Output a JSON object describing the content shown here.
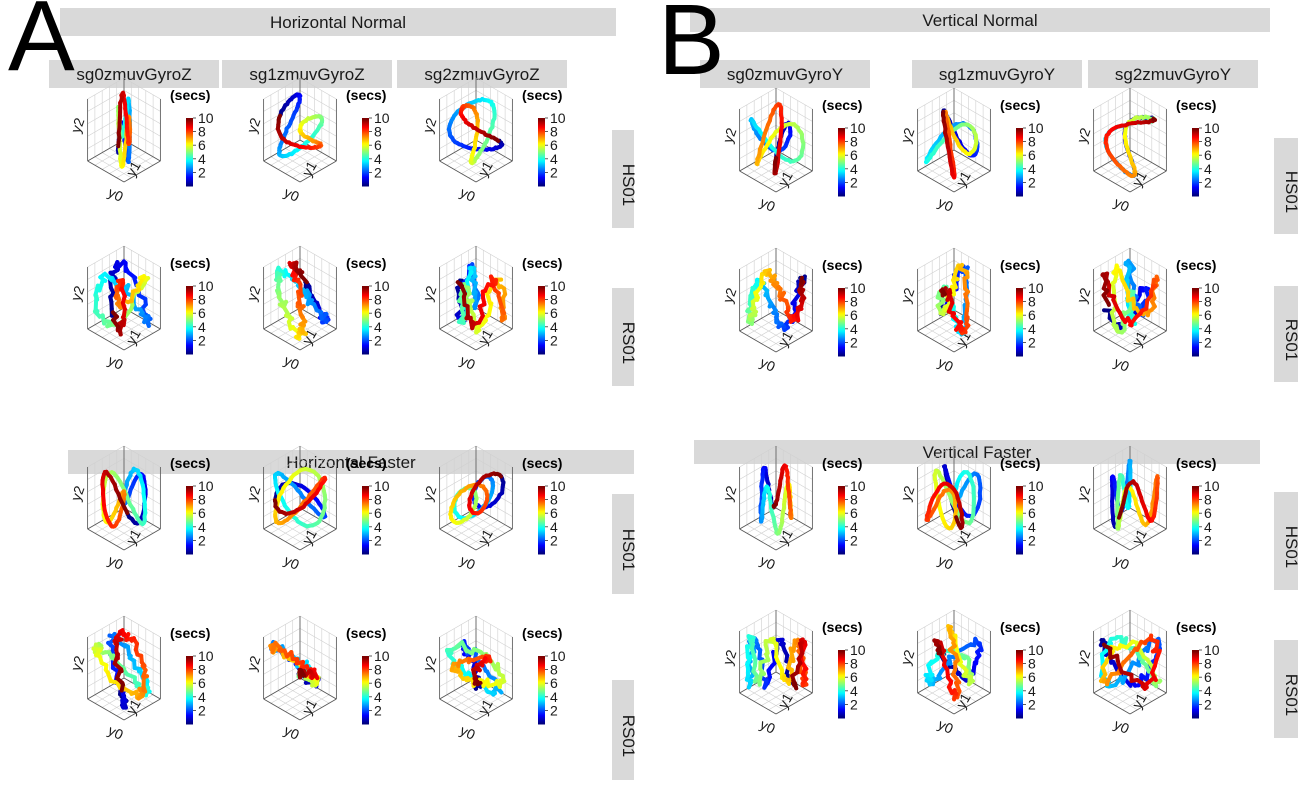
{
  "figure": {
    "panels": [
      {
        "letter": "A",
        "column_labels": [
          "sg0zmuvGyroZ",
          "sg1zmuvGyroZ",
          "sg2zmuvGyroZ"
        ],
        "blocks": [
          {
            "title": "Horizontal Normal",
            "row_labels": [
              "HS01",
              "RS01"
            ]
          },
          {
            "title": "Horizontal Faster",
            "row_labels": [
              "HS01",
              "RS01"
            ]
          }
        ]
      },
      {
        "letter": "B",
        "column_labels": [
          "sg0zmuvGyroY",
          "sg1zmuvGyroY",
          "sg2zmuvGyroY"
        ],
        "blocks": [
          {
            "title": "Vertical Normal",
            "row_labels": [
              "HS01",
              "RS01"
            ]
          },
          {
            "title": "Vertical Faster",
            "row_labels": [
              "HS01",
              "RS01"
            ]
          }
        ]
      }
    ]
  },
  "chart_data": {
    "type": "line",
    "projection": "3d",
    "axis_labels": {
      "x": "y0",
      "y": "y1",
      "z": "y2"
    },
    "colorbar": {
      "label": "(secs)",
      "ticks": [
        2,
        4,
        6,
        8,
        10
      ],
      "range": [
        0,
        10
      ],
      "colormap": "jet"
    },
    "colormap_stops": [
      "#00007f",
      "#0000ff",
      "#007fff",
      "#00ffff",
      "#7fff7f",
      "#ffff00",
      "#ff7f00",
      "#ff0000",
      "#7f0000"
    ],
    "panel_grid": {
      "panels": 2,
      "blocks_per_panel": 2,
      "rows_per_block": 2,
      "columns": 3
    }
  }
}
